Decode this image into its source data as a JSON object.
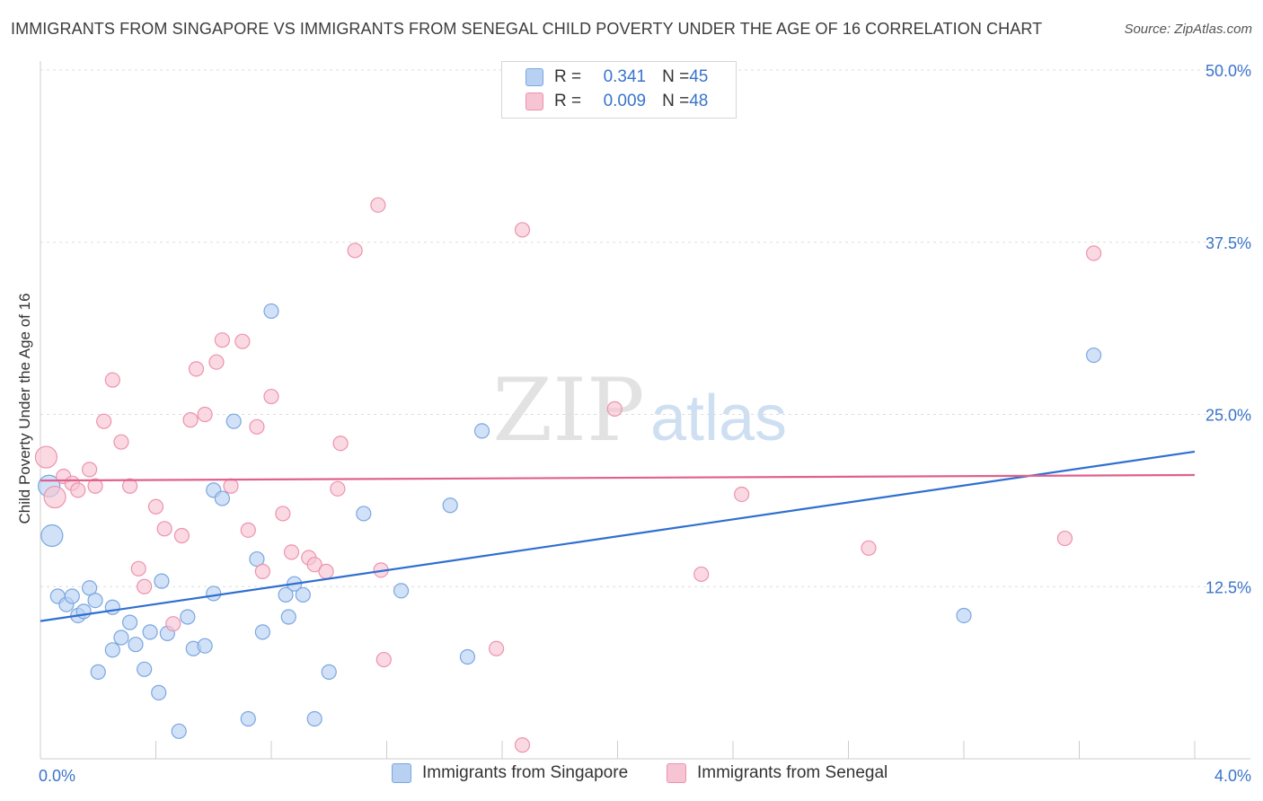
{
  "title": "IMMIGRANTS FROM SINGAPORE VS IMMIGRANTS FROM SENEGAL CHILD POVERTY UNDER THE AGE OF 16 CORRELATION CHART",
  "source": "Source: ZipAtlas.com",
  "watermark": {
    "zip": "ZIP",
    "atlas": "atlas"
  },
  "colors": {
    "singapore_fill": "#b8d1f2",
    "singapore_stroke": "#7aa7df",
    "singapore_line": "#2f6fcf",
    "senegal_fill": "#f7c4d3",
    "senegal_stroke": "#ec93b0",
    "senegal_line": "#e0608e",
    "tick_text": "#3a74c9",
    "grid": "#dddddd"
  },
  "legend": {
    "singapore": {
      "r_label": "R = ",
      "r_value": "0.341",
      "n_label": "N = ",
      "n_value": "45"
    },
    "senegal": {
      "r_label": "R = ",
      "r_value": "0.009",
      "n_label": "N = ",
      "n_value": "48"
    }
  },
  "chart_data": {
    "type": "scatter",
    "ylabel": "Child Poverty Under the Age of 16",
    "xlim": [
      0,
      4.0
    ],
    "ylim": [
      0,
      50
    ],
    "x_ticks_labels": [
      "0.0%",
      "4.0%"
    ],
    "y_ticks": [
      12.5,
      25.0,
      37.5,
      50.0
    ],
    "y_tick_labels": [
      "12.5%",
      "25.0%",
      "37.5%",
      "50.0%"
    ],
    "grid": true,
    "legend_position": "top-center",
    "series": [
      {
        "name": "Immigrants from Singapore",
        "color": "#b8d1f2",
        "trend": {
          "x": [
            0,
            4.0
          ],
          "y": [
            10.0,
            22.3
          ]
        },
        "points": [
          [
            0.03,
            19.8
          ],
          [
            0.04,
            16.2
          ],
          [
            0.06,
            11.8
          ],
          [
            0.09,
            11.2
          ],
          [
            0.11,
            11.8
          ],
          [
            0.13,
            10.4
          ],
          [
            0.15,
            10.7
          ],
          [
            0.17,
            12.4
          ],
          [
            0.19,
            11.5
          ],
          [
            0.2,
            6.3
          ],
          [
            0.25,
            7.9
          ],
          [
            0.28,
            8.8
          ],
          [
            0.31,
            9.9
          ],
          [
            0.33,
            8.3
          ],
          [
            0.36,
            6.5
          ],
          [
            0.38,
            9.2
          ],
          [
            0.41,
            4.8
          ],
          [
            0.42,
            12.9
          ],
          [
            0.44,
            9.1
          ],
          [
            0.48,
            2.0
          ],
          [
            0.51,
            10.3
          ],
          [
            0.53,
            8.0
          ],
          [
            0.57,
            8.2
          ],
          [
            0.6,
            12.0
          ],
          [
            0.6,
            19.5
          ],
          [
            0.63,
            18.9
          ],
          [
            0.67,
            24.5
          ],
          [
            0.72,
            2.9
          ],
          [
            0.75,
            14.5
          ],
          [
            0.77,
            9.2
          ],
          [
            0.8,
            32.5
          ],
          [
            0.85,
            11.9
          ],
          [
            0.86,
            10.3
          ],
          [
            0.88,
            12.7
          ],
          [
            0.91,
            11.9
          ],
          [
            0.95,
            2.9
          ],
          [
            1.0,
            6.3
          ],
          [
            1.12,
            17.8
          ],
          [
            1.25,
            12.2
          ],
          [
            1.42,
            18.4
          ],
          [
            1.48,
            7.4
          ],
          [
            1.53,
            23.8
          ],
          [
            3.2,
            10.4
          ],
          [
            3.65,
            29.3
          ],
          [
            0.25,
            11.0
          ]
        ]
      },
      {
        "name": "Immigrants from Senegal",
        "color": "#f7c4d3",
        "trend": {
          "x": [
            0,
            4.0
          ],
          "y": [
            20.2,
            20.6
          ]
        },
        "points": [
          [
            0.02,
            21.9
          ],
          [
            0.05,
            19.0
          ],
          [
            0.08,
            20.5
          ],
          [
            0.11,
            20.0
          ],
          [
            0.13,
            19.5
          ],
          [
            0.17,
            21.0
          ],
          [
            0.19,
            19.8
          ],
          [
            0.22,
            24.5
          ],
          [
            0.25,
            27.5
          ],
          [
            0.28,
            23.0
          ],
          [
            0.31,
            19.8
          ],
          [
            0.34,
            13.8
          ],
          [
            0.36,
            12.5
          ],
          [
            0.4,
            18.3
          ],
          [
            0.43,
            16.7
          ],
          [
            0.46,
            9.8
          ],
          [
            0.49,
            16.2
          ],
          [
            0.52,
            24.6
          ],
          [
            0.54,
            28.3
          ],
          [
            0.57,
            25.0
          ],
          [
            0.61,
            28.8
          ],
          [
            0.63,
            30.4
          ],
          [
            0.66,
            19.8
          ],
          [
            0.7,
            30.3
          ],
          [
            0.72,
            16.6
          ],
          [
            0.75,
            24.1
          ],
          [
            0.77,
            13.6
          ],
          [
            0.8,
            26.3
          ],
          [
            0.84,
            17.8
          ],
          [
            0.87,
            15.0
          ],
          [
            0.93,
            14.6
          ],
          [
            0.95,
            14.1
          ],
          [
            0.99,
            13.6
          ],
          [
            1.03,
            19.6
          ],
          [
            1.04,
            22.9
          ],
          [
            1.09,
            36.9
          ],
          [
            1.17,
            40.2
          ],
          [
            1.19,
            7.2
          ],
          [
            1.18,
            13.7
          ],
          [
            1.58,
            8.0
          ],
          [
            1.67,
            38.4
          ],
          [
            1.67,
            1.0
          ],
          [
            1.99,
            25.4
          ],
          [
            2.29,
            13.4
          ],
          [
            2.43,
            19.2
          ],
          [
            2.87,
            15.3
          ],
          [
            3.55,
            16.0
          ],
          [
            3.65,
            36.7
          ]
        ]
      }
    ]
  },
  "bottom_legend": [
    "Immigrants from Singapore",
    "Immigrants from Senegal"
  ]
}
